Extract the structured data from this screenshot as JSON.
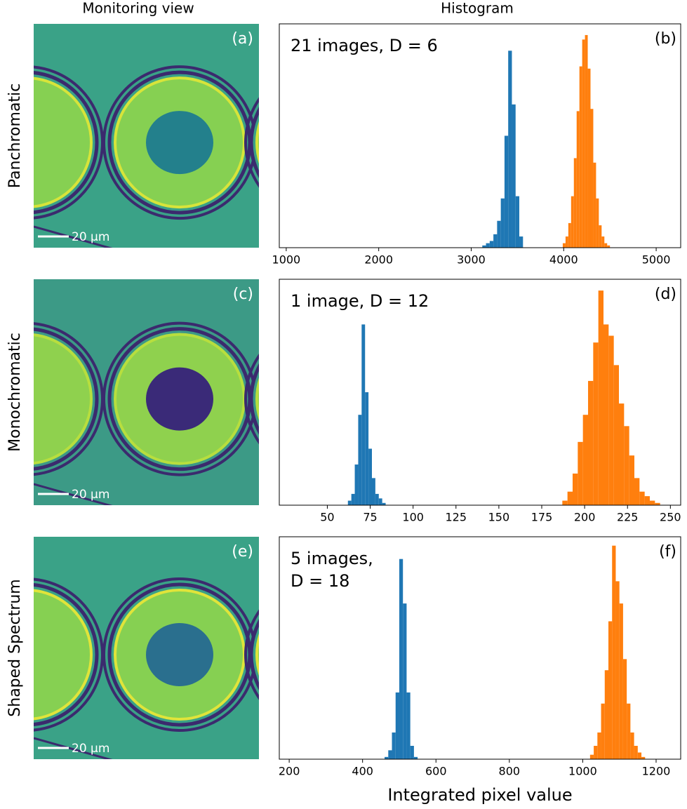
{
  "column_titles": [
    "Monitoring view",
    "Histogram"
  ],
  "row_labels": [
    "Panchromatic",
    "Monochromatic",
    "Shaped Spectrum"
  ],
  "images": [
    {
      "label": "(a)",
      "scale_bar": "20 µm"
    },
    {
      "label": "(c)",
      "scale_bar": "20 µm"
    },
    {
      "label": "(e)",
      "scale_bar": "20 µm"
    }
  ],
  "chart_data": [
    {
      "type": "histogram",
      "panel_label": "(b)",
      "annotation": [
        "21 images, D = 6"
      ],
      "xlim": [
        925,
        5265
      ],
      "xticks": [
        1000,
        2000,
        3000,
        4000,
        5000
      ],
      "ylim": [
        0,
        100
      ],
      "series": [
        {
          "color": "#1f77b4",
          "bins": [
            3120,
            3160,
            3200,
            3240,
            3280,
            3320,
            3360,
            3400,
            3440,
            3480,
            3520,
            3560
          ],
          "counts": [
            1,
            2,
            3,
            6,
            12,
            22,
            50,
            88,
            64,
            23,
            5
          ]
        },
        {
          "color": "#ff7f0e",
          "bins": [
            3990,
            4020,
            4050,
            4080,
            4110,
            4140,
            4170,
            4200,
            4230,
            4260,
            4290,
            4320,
            4350,
            4380,
            4410,
            4440,
            4470,
            4500
          ],
          "counts": [
            2,
            5,
            11,
            23,
            40,
            61,
            81,
            93,
            95,
            80,
            62,
            38,
            22,
            10,
            5,
            2,
            1
          ]
        }
      ]
    },
    {
      "type": "histogram",
      "panel_label": "(d)",
      "annotation": [
        "1 image, D = 12"
      ],
      "xlim": [
        22,
        256
      ],
      "xticks": [
        50,
        75,
        100,
        125,
        150,
        175,
        200,
        225,
        250
      ],
      "ylim": [
        0,
        100
      ],
      "series": [
        {
          "color": "#1f77b4",
          "bins": [
            62,
            64,
            66,
            68,
            70,
            72,
            74,
            76,
            78,
            80,
            82,
            84
          ],
          "counts": [
            2,
            5,
            18,
            40,
            80,
            50,
            25,
            12,
            5,
            3,
            1
          ]
        },
        {
          "color": "#ff7f0e",
          "bins": [
            187,
            190,
            193,
            196,
            199,
            202,
            205,
            208,
            211,
            214,
            217,
            220,
            223,
            226,
            229,
            232,
            235,
            238,
            241,
            244
          ],
          "counts": [
            2,
            6,
            14,
            28,
            40,
            55,
            72,
            95,
            80,
            75,
            62,
            45,
            35,
            22,
            12,
            6,
            4,
            2,
            1
          ]
        }
      ]
    },
    {
      "type": "histogram",
      "panel_label": "(f)",
      "annotation": [
        "5 images,",
        "D = 18"
      ],
      "xlim": [
        173,
        1267
      ],
      "xticks": [
        200,
        400,
        600,
        800,
        1000,
        1200
      ],
      "ylim": [
        0,
        100
      ],
      "xlabel": "Integrated pixel value",
      "series": [
        {
          "color": "#1f77b4",
          "bins": [
            460,
            470,
            480,
            490,
            500,
            510,
            520,
            530,
            540,
            550
          ],
          "counts": [
            1,
            4,
            12,
            30,
            90,
            70,
            30,
            6,
            1
          ]
        },
        {
          "color": "#ff7f0e",
          "bins": [
            1020,
            1030,
            1040,
            1050,
            1060,
            1070,
            1080,
            1090,
            1100,
            1110,
            1120,
            1130,
            1140,
            1150,
            1160,
            1170
          ],
          "counts": [
            2,
            6,
            12,
            25,
            40,
            62,
            96,
            80,
            70,
            45,
            25,
            12,
            6,
            3,
            1
          ]
        }
      ]
    }
  ]
}
